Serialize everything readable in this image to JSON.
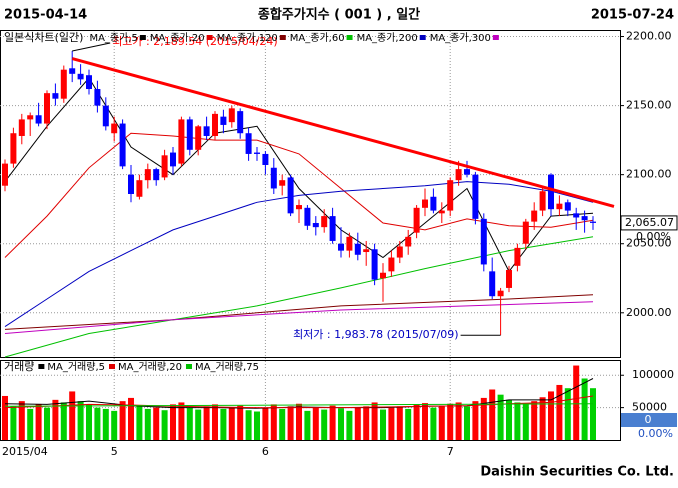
{
  "chart_data": {
    "type": "candlestick",
    "title": "종합주가지수 ( 001 ) , 일간",
    "start_date_label": "2015-04-14",
    "end_date_label": "2015-07-24",
    "footer": "Daishin Securities Co. Ltd.",
    "panel_label": "일본식차트(일간)",
    "categories": [
      "2015/04",
      null,
      null,
      null,
      null,
      null,
      null,
      null,
      null,
      null,
      null,
      null,
      null,
      "5",
      null,
      null,
      null,
      null,
      null,
      null,
      null,
      null,
      null,
      null,
      null,
      null,
      null,
      null,
      null,
      null,
      null,
      "6",
      null,
      null,
      null,
      null,
      null,
      null,
      null,
      null,
      null,
      null,
      null,
      null,
      null,
      null,
      null,
      null,
      null,
      null,
      null,
      null,
      null,
      "7",
      null,
      null,
      null,
      null,
      null,
      null,
      null,
      null,
      null,
      null,
      null,
      null,
      null,
      null,
      null,
      null,
      null
    ],
    "up_color": "#ff0000",
    "down_color": "#0000ff",
    "open": [
      2092,
      2108,
      2128,
      2140,
      2143,
      2137,
      2159,
      2155,
      2177,
      2173,
      2172,
      2162,
      2150,
      2130,
      2137,
      2100,
      2084,
      2096,
      2104,
      2098,
      2116,
      2108,
      2140,
      2118,
      2135,
      2128,
      2142,
      2138,
      2146,
      2130,
      2116,
      2115,
      2105,
      2092,
      2098,
      2075,
      2076,
      2065,
      2062,
      2070,
      2050,
      2045,
      2050,
      2044,
      2046,
      2025,
      2030,
      2040,
      2048,
      2058,
      2076,
      2084,
      2072,
      2074,
      2096,
      2104,
      2100,
      2068,
      2030,
      2012,
      2018,
      2034,
      2050,
      2066,
      2074,
      2100,
      2075,
      2080,
      2072,
      2070,
      2066
    ],
    "high": [
      2111,
      2134,
      2144,
      2145,
      2152,
      2161,
      2166,
      2179,
      2189.54,
      2180,
      2176,
      2168,
      2156,
      2142,
      2140,
      2107,
      2100,
      2108,
      2105,
      2118,
      2120,
      2142,
      2142,
      2136,
      2142,
      2146,
      2147,
      2150,
      2148,
      2134,
      2120,
      2117,
      2112,
      2100,
      2100,
      2082,
      2078,
      2070,
      2075,
      2076,
      2062,
      2058,
      2058,
      2052,
      2050,
      2036,
      2045,
      2052,
      2060,
      2078,
      2090,
      2090,
      2080,
      2098,
      2110,
      2110,
      2102,
      2072,
      2040,
      2018,
      2034,
      2050,
      2068,
      2080,
      2092,
      2101,
      2085,
      2082,
      2076,
      2074,
      2070
    ],
    "low": [
      2088,
      2105,
      2122,
      2128,
      2135,
      2133,
      2150,
      2152,
      2167,
      2165,
      2158,
      2145,
      2132,
      2124,
      2104,
      2080,
      2082,
      2090,
      2092,
      2096,
      2100,
      2106,
      2114,
      2114,
      2125,
      2125,
      2130,
      2134,
      2126,
      2110,
      2110,
      2100,
      2086,
      2085,
      2070,
      2065,
      2060,
      2056,
      2058,
      2050,
      2040,
      2040,
      2038,
      2034,
      2020,
      2008,
      2026,
      2036,
      2042,
      2054,
      2070,
      2072,
      2065,
      2070,
      2092,
      2098,
      2064,
      2030,
      2010,
      1983.78,
      2015,
      2030,
      2046,
      2060,
      2070,
      2070,
      2070,
      2070,
      2060,
      2058,
      2060
    ],
    "close": [
      2108,
      2130,
      2140,
      2143,
      2137,
      2159,
      2155,
      2176,
      2173,
      2169,
      2162,
      2150,
      2135,
      2137,
      2106,
      2086,
      2096,
      2104,
      2096,
      2114,
      2106,
      2140,
      2118,
      2135,
      2128,
      2144,
      2136,
      2148,
      2130,
      2115,
      2115,
      2107,
      2090,
      2096,
      2072,
      2078,
      2063,
      2062,
      2070,
      2052,
      2045,
      2055,
      2042,
      2046,
      2024,
      2029,
      2040,
      2048,
      2055,
      2076,
      2082,
      2074,
      2074,
      2096,
      2104,
      2100,
      2068,
      2035,
      2012,
      2016,
      2031,
      2047,
      2066,
      2074,
      2088,
      2075,
      2079,
      2074,
      2069,
      2067,
      2065.07
    ],
    "ylim": [
      1968,
      2204
    ],
    "yticks": [
      {
        "value": 2000,
        "label": "2000.00"
      },
      {
        "value": 2050,
        "label": "2050.00"
      },
      {
        "value": 2100,
        "label": "2100.00"
      },
      {
        "value": 2150,
        "label": "2150.00"
      },
      {
        "value": 2200,
        "label": "2200.00"
      }
    ],
    "grid": true,
    "ma_series": [
      {
        "name": "MA_종가,5",
        "color": "#000000",
        "x": [
          0,
          5,
          10,
          15,
          20,
          25,
          30,
          35,
          40,
          45,
          50,
          55,
          60,
          65,
          70
        ],
        "values": [
          2095,
          2135,
          2170,
          2120,
          2100,
          2130,
          2135,
          2090,
          2060,
          2040,
          2065,
          2090,
          2030,
          2070,
          2072
        ]
      },
      {
        "name": "MA_종가,20",
        "color": "#e00000",
        "x": [
          0,
          5,
          10,
          15,
          20,
          25,
          30,
          35,
          40,
          45,
          50,
          55,
          60,
          65,
          70
        ],
        "values": [
          2040,
          2070,
          2105,
          2130,
          2128,
          2125,
          2125,
          2115,
          2090,
          2065,
          2060,
          2068,
          2063,
          2062,
          2067
        ]
      },
      {
        "name": "MA_종가,120",
        "color": "#800000",
        "x": [
          0,
          20,
          40,
          60,
          70
        ],
        "values": [
          1988,
          1995,
          2005,
          2010,
          2013
        ]
      },
      {
        "name": "MA_종가,60",
        "color": "#00c000",
        "x": [
          0,
          10,
          20,
          30,
          40,
          50,
          60,
          70
        ],
        "values": [
          1968,
          1985,
          1995,
          2005,
          2018,
          2032,
          2045,
          2055
        ]
      },
      {
        "name": "MA_종가,200",
        "color": "#0000c0",
        "x": [
          0,
          5,
          10,
          15,
          20,
          25,
          30,
          35,
          40,
          45,
          50,
          55,
          60,
          65,
          70
        ],
        "values": [
          1990,
          2010,
          2030,
          2045,
          2060,
          2070,
          2080,
          2085,
          2088,
          2090,
          2092,
          2095,
          2093,
          2088,
          2080
        ]
      },
      {
        "name": "MA_종가,300",
        "color": "#c000c0",
        "x": [
          0,
          20,
          40,
          60,
          70
        ],
        "values": [
          1985,
          1995,
          2002,
          2006,
          2008
        ]
      }
    ],
    "trendline": {
      "color": "#ff0000",
      "x": [
        8,
        72.5
      ],
      "values": [
        2184,
        2077
      ]
    },
    "annotations": [
      {
        "text": "최고가 : 2,189.54 (2015/04/24)",
        "x": 8,
        "value": 2189.54,
        "color": "#ff0000"
      },
      {
        "text": "최저가 : 1,983.78 (2015/07/09)",
        "x": 59,
        "value": 1983.78,
        "color": "#0000c0"
      }
    ],
    "last_price": {
      "value": 2065.07,
      "label": "2,065.07"
    },
    "change_label": "0.00%",
    "volume": {
      "label": "거래량",
      "up_color": "#ff0000",
      "down_color": "#00d000",
      "values": [
        68000,
        52000,
        60000,
        48000,
        55000,
        50000,
        62000,
        58000,
        75000,
        60000,
        55000,
        50000,
        48000,
        45000,
        60000,
        65000,
        52000,
        48000,
        50000,
        46000,
        55000,
        58000,
        50000,
        47000,
        52000,
        55000,
        48000,
        50000,
        53000,
        46000,
        44000,
        50000,
        55000,
        48000,
        52000,
        56000,
        45000,
        50000,
        47000,
        53000,
        49000,
        45000,
        50000,
        52000,
        58000,
        47000,
        50000,
        52000,
        48000,
        55000,
        57000,
        50000,
        53000,
        56000,
        58000,
        52000,
        60000,
        65000,
        78000,
        70000,
        62000,
        58000,
        55000,
        60000,
        66000,
        75000,
        85000,
        80000,
        115000,
        95000,
        80000
      ],
      "ylim": [
        0,
        122000
      ],
      "yticks": [
        50000,
        100000
      ],
      "series": [
        {
          "name": "MA_거래량,5",
          "color": "#000000",
          "x": [
            0,
            5,
            10,
            15,
            20,
            25,
            30,
            35,
            40,
            45,
            50,
            55,
            60,
            65,
            70
          ],
          "values": [
            56000,
            55000,
            60000,
            53000,
            50000,
            50000,
            49000,
            51000,
            50000,
            50000,
            52000,
            53000,
            62000,
            62000,
            95000
          ]
        },
        {
          "name": "MA_거래량,20",
          "color": "#e00000",
          "x": [
            0,
            5,
            10,
            15,
            20,
            25,
            30,
            35,
            40,
            45,
            50,
            55,
            60,
            65,
            70
          ],
          "values": [
            50000,
            52000,
            55000,
            54000,
            52000,
            51000,
            50000,
            50000,
            50000,
            51000,
            52000,
            53000,
            56000,
            58000,
            68000
          ]
        },
        {
          "name": "MA_거래량,75",
          "color": "#00c000",
          "x": [
            0,
            70
          ],
          "values": [
            52000,
            56000
          ]
        }
      ],
      "last_value": 0,
      "change_label": "0.00%"
    }
  }
}
